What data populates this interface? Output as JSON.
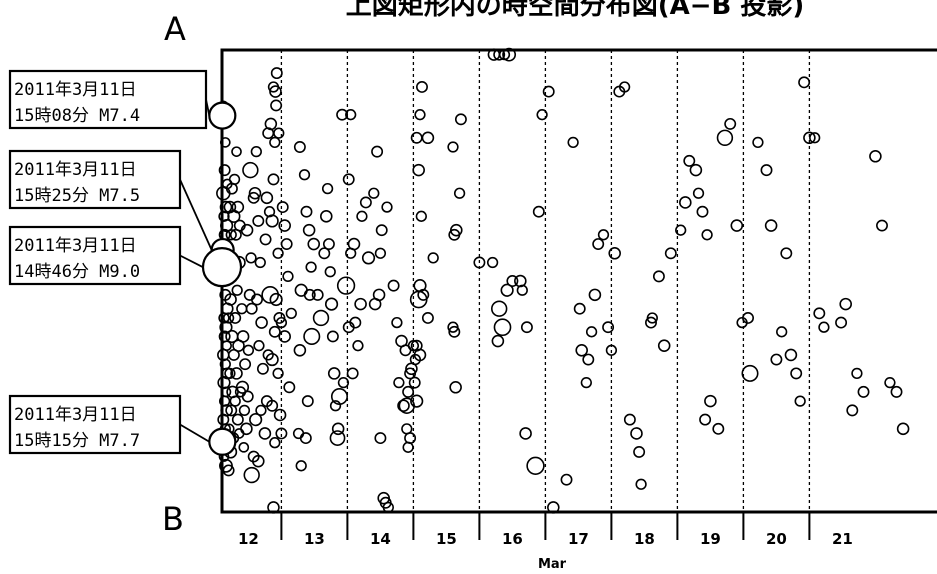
{
  "chart_data": {
    "type": "scatter",
    "title": "上図矩形内の時空間分布図(A−B 投影)",
    "top_label": "A",
    "bottom_label": "B",
    "xlabel": "Mar",
    "ylabel": "",
    "xlim": [
      11.6,
      22.0
    ],
    "ylim": [
      0,
      1
    ],
    "grid": true,
    "x_ticks": [
      {
        "value": 12,
        "label": "12"
      },
      {
        "value": 13,
        "label": "13"
      },
      {
        "value": 14,
        "label": "14"
      },
      {
        "value": 15,
        "label": "15"
      },
      {
        "value": 16,
        "label": "16"
      },
      {
        "value": 17,
        "label": "17"
      },
      {
        "value": 18,
        "label": "18"
      },
      {
        "value": 19,
        "label": "19"
      },
      {
        "value": 20,
        "label": "20"
      },
      {
        "value": 21,
        "label": "21"
      }
    ],
    "callouts": [
      {
        "line1": "2011年3月11日",
        "line2": "15時08分 M7.4",
        "x": 11.605,
        "y": 0.858,
        "mag": 7.4
      },
      {
        "line1": "2011年3月11日",
        "line2": "15時25分 M7.5",
        "x": 11.61,
        "y": 0.567,
        "mag": 7.5
      },
      {
        "line1": "2011年3月11日",
        "line2": "14時46分 M9.0",
        "x": 11.6,
        "y": 0.53,
        "mag": 9.0
      },
      {
        "line1": "2011年3月11日",
        "line2": "15時15分 M7.7",
        "x": 11.605,
        "y": 0.152,
        "mag": 7.7
      }
    ],
    "points": [
      [
        11.62,
        0.88,
        5.0
      ],
      [
        11.65,
        0.8,
        5.1
      ],
      [
        11.64,
        0.74,
        5.3
      ],
      [
        11.68,
        0.71,
        5.1
      ],
      [
        11.62,
        0.69,
        5.7
      ],
      [
        11.66,
        0.66,
        5.4
      ],
      [
        11.63,
        0.64,
        5.2
      ],
      [
        11.67,
        0.62,
        5.5
      ],
      [
        11.64,
        0.6,
        5.3
      ],
      [
        11.66,
        0.58,
        5.2
      ],
      [
        11.62,
        0.5,
        5.1
      ],
      [
        11.65,
        0.47,
        5.3
      ],
      [
        11.68,
        0.44,
        5.4
      ],
      [
        11.63,
        0.42,
        5.2
      ],
      [
        11.66,
        0.4,
        5.5
      ],
      [
        11.64,
        0.38,
        5.3
      ],
      [
        11.67,
        0.36,
        5.1
      ],
      [
        11.62,
        0.34,
        5.4
      ],
      [
        11.65,
        0.32,
        5.2
      ],
      [
        11.68,
        0.3,
        5.3
      ],
      [
        11.63,
        0.28,
        5.5
      ],
      [
        11.66,
        0.26,
        5.1
      ],
      [
        11.64,
        0.24,
        5.2
      ],
      [
        11.67,
        0.22,
        5.4
      ],
      [
        11.62,
        0.2,
        5.3
      ],
      [
        11.65,
        0.18,
        5.2
      ],
      [
        11.68,
        0.14,
        5.5
      ],
      [
        11.63,
        0.12,
        5.1
      ],
      [
        11.66,
        0.1,
        5.6
      ],
      [
        11.7,
        0.09,
        5.3
      ],
      [
        11.72,
        0.66,
        5.4
      ],
      [
        11.75,
        0.7,
        5.3
      ],
      [
        11.78,
        0.64,
        5.5
      ],
      [
        11.74,
        0.6,
        5.2
      ],
      [
        11.71,
        0.56,
        5.1
      ],
      [
        11.76,
        0.52,
        5.3
      ],
      [
        11.73,
        0.46,
        5.4
      ],
      [
        11.7,
        0.42,
        5.2
      ],
      [
        11.75,
        0.38,
        5.5
      ],
      [
        11.78,
        0.34,
        5.3
      ],
      [
        11.72,
        0.3,
        5.2
      ],
      [
        11.76,
        0.26,
        5.4
      ],
      [
        11.74,
        0.22,
        5.3
      ],
      [
        11.71,
        0.18,
        5.1
      ],
      [
        11.77,
        0.16,
        5.3
      ],
      [
        11.73,
        0.13,
        5.5
      ],
      [
        11.8,
        0.24,
        5.2
      ],
      [
        11.82,
        0.3,
        5.4
      ],
      [
        11.84,
        0.2,
        5.3
      ],
      [
        11.86,
        0.17,
        5.1
      ],
      [
        11.88,
        0.26,
        5.2
      ],
      [
        11.85,
        0.36,
        5.4
      ],
      [
        11.8,
        0.42,
        5.3
      ],
      [
        11.83,
        0.48,
        5.2
      ],
      [
        11.86,
        0.54,
        5.5
      ],
      [
        11.81,
        0.6,
        5.3
      ],
      [
        11.84,
        0.66,
        5.4
      ],
      [
        11.79,
        0.72,
        5.2
      ],
      [
        11.82,
        0.78,
        5.1
      ],
      [
        11.87,
        0.62,
        5.3
      ],
      [
        11.9,
        0.44,
        5.2
      ],
      [
        11.92,
        0.38,
        5.4
      ],
      [
        11.95,
        0.32,
        5.3
      ],
      [
        11.91,
        0.27,
        5.5
      ],
      [
        11.94,
        0.22,
        5.2
      ],
      [
        11.97,
        0.18,
        5.4
      ],
      [
        11.93,
        0.14,
        5.1
      ],
      [
        11.99,
        0.25,
        5.3
      ],
      [
        12.0,
        0.35,
        5.2
      ],
      [
        12.02,
        0.47,
        5.3
      ],
      [
        12.04,
        0.55,
        5.2
      ],
      [
        11.98,
        0.61,
        5.4
      ],
      [
        12.05,
        0.44,
        5.3
      ],
      [
        12.08,
        0.68,
        5.3
      ],
      [
        12.03,
        0.74,
        6.0
      ],
      [
        12.12,
        0.78,
        5.2
      ],
      [
        12.1,
        0.69,
        5.4
      ],
      [
        12.15,
        0.63,
        5.3
      ],
      [
        12.18,
        0.54,
        5.2
      ],
      [
        12.13,
        0.46,
        5.3
      ],
      [
        12.2,
        0.41,
        5.4
      ],
      [
        12.16,
        0.36,
        5.2
      ],
      [
        12.22,
        0.31,
        5.3
      ],
      [
        12.19,
        0.22,
        5.2
      ],
      [
        12.25,
        0.17,
        5.4
      ],
      [
        12.11,
        0.2,
        5.5
      ],
      [
        12.08,
        0.12,
        5.3
      ],
      [
        12.05,
        0.08,
        6.0
      ],
      [
        12.15,
        0.11,
        5.4
      ],
      [
        12.28,
        0.24,
        5.3
      ],
      [
        12.3,
        0.34,
        5.2
      ],
      [
        12.33,
        0.47,
        6.2
      ],
      [
        12.26,
        0.59,
        5.3
      ],
      [
        12.28,
        0.68,
        5.4
      ],
      [
        12.32,
        0.65,
        5.2
      ],
      [
        12.36,
        0.63,
        5.5
      ],
      [
        12.38,
        0.72,
        5.3
      ],
      [
        12.4,
        0.8,
        5.2
      ],
      [
        12.34,
        0.84,
        5.4
      ],
      [
        12.42,
        0.88,
        5.3
      ],
      [
        12.38,
        0.92,
        5.2
      ],
      [
        12.43,
        0.95,
        5.3
      ],
      [
        12.41,
        0.91,
        5.4
      ],
      [
        12.3,
        0.82,
        5.3
      ],
      [
        12.46,
        0.82,
        5.2
      ],
      [
        12.45,
        0.3,
        5.2
      ],
      [
        12.48,
        0.21,
        5.4
      ],
      [
        12.5,
        0.17,
        5.3
      ],
      [
        12.36,
        0.23,
        5.3
      ],
      [
        12.4,
        0.15,
        5.2
      ],
      [
        12.52,
        0.66,
        5.3
      ],
      [
        12.55,
        0.62,
        5.4
      ],
      [
        12.45,
        0.56,
        5.2
      ],
      [
        12.42,
        0.46,
        5.5
      ],
      [
        12.58,
        0.58,
        5.3
      ],
      [
        12.6,
        0.51,
        5.2
      ],
      [
        12.55,
        0.38,
        5.4
      ],
      [
        12.62,
        0.27,
        5.3
      ],
      [
        12.65,
        0.43,
        5.2
      ],
      [
        12.47,
        0.42,
        5.3
      ],
      [
        12.38,
        0.01,
        5.4
      ],
      [
        12.5,
        0.41,
        5.2
      ],
      [
        12.4,
        0.39,
        5.3
      ],
      [
        12.36,
        0.33,
        5.5
      ],
      [
        12.78,
        0.79,
        5.3
      ],
      [
        12.85,
        0.73,
        5.2
      ],
      [
        12.92,
        0.61,
        5.4
      ],
      [
        12.88,
        0.65,
        5.3
      ],
      [
        12.95,
        0.53,
        5.2
      ],
      [
        12.8,
        0.48,
        5.5
      ],
      [
        12.96,
        0.38,
        6.1
      ],
      [
        12.78,
        0.35,
        5.4
      ],
      [
        12.9,
        0.24,
        5.3
      ],
      [
        12.76,
        0.17,
        5.2
      ],
      [
        12.87,
        0.16,
        5.3
      ],
      [
        12.99,
        0.58,
        5.4
      ],
      [
        12.93,
        0.47,
        5.3
      ],
      [
        12.8,
        0.1,
        5.2
      ],
      [
        13.05,
        0.47,
        5.3
      ],
      [
        13.1,
        0.42,
        6.0
      ],
      [
        13.15,
        0.56,
        5.3
      ],
      [
        13.18,
        0.64,
        5.4
      ],
      [
        13.2,
        0.7,
        5.2
      ],
      [
        13.22,
        0.58,
        5.3
      ],
      [
        13.24,
        0.52,
        5.2
      ],
      [
        13.26,
        0.45,
        5.5
      ],
      [
        13.28,
        0.38,
        5.3
      ],
      [
        13.3,
        0.3,
        5.4
      ],
      [
        13.32,
        0.23,
        5.2
      ],
      [
        13.35,
        0.16,
        5.9
      ],
      [
        13.38,
        0.25,
        6.1
      ],
      [
        13.42,
        0.86,
        5.3
      ],
      [
        13.55,
        0.86,
        5.2
      ],
      [
        13.52,
        0.72,
        5.3
      ],
      [
        13.6,
        0.58,
        5.4
      ],
      [
        13.55,
        0.56,
        5.2
      ],
      [
        13.48,
        0.49,
        6.3
      ],
      [
        13.62,
        0.41,
        5.3
      ],
      [
        13.66,
        0.36,
        5.2
      ],
      [
        13.7,
        0.45,
        5.4
      ],
      [
        13.58,
        0.3,
        5.3
      ],
      [
        13.44,
        0.28,
        5.2
      ],
      [
        13.36,
        0.18,
        5.4
      ],
      [
        13.52,
        0.4,
        5.3
      ],
      [
        13.72,
        0.64,
        5.2
      ],
      [
        13.78,
        0.67,
        5.3
      ],
      [
        13.82,
        0.55,
        5.5
      ],
      [
        13.9,
        0.69,
        5.2
      ],
      [
        13.95,
        0.78,
        5.3
      ],
      [
        13.98,
        0.47,
        5.4
      ],
      [
        14.0,
        0.56,
        5.2
      ],
      [
        14.02,
        0.61,
        5.3
      ],
      [
        14.05,
        0.03,
        5.4
      ],
      [
        14.08,
        0.02,
        5.3
      ],
      [
        14.12,
        0.01,
        5.2
      ],
      [
        14.0,
        0.16,
        5.3
      ],
      [
        13.92,
        0.45,
        5.4
      ],
      [
        14.1,
        0.66,
        5.2
      ],
      [
        14.2,
        0.49,
        5.3
      ],
      [
        14.25,
        0.41,
        5.2
      ],
      [
        14.32,
        0.37,
        5.4
      ],
      [
        14.38,
        0.35,
        5.3
      ],
      [
        14.28,
        0.28,
        5.2
      ],
      [
        14.35,
        0.23,
        5.4
      ],
      [
        14.4,
        0.18,
        5.2
      ],
      [
        14.42,
        0.26,
        5.3
      ],
      [
        14.47,
        0.31,
        5.4
      ],
      [
        14.53,
        0.33,
        5.2
      ],
      [
        14.55,
        0.36,
        5.3
      ],
      [
        14.58,
        0.46,
        6.2
      ],
      [
        14.6,
        0.49,
        5.5
      ],
      [
        14.65,
        0.47,
        5.3
      ],
      [
        14.62,
        0.64,
        5.2
      ],
      [
        14.58,
        0.74,
        5.4
      ],
      [
        14.55,
        0.81,
        5.3
      ],
      [
        14.6,
        0.86,
        5.2
      ],
      [
        14.63,
        0.92,
        5.3
      ],
      [
        14.72,
        0.81,
        5.4
      ],
      [
        14.8,
        0.55,
        5.2
      ],
      [
        14.72,
        0.42,
        5.3
      ],
      [
        14.55,
        0.24,
        5.5
      ],
      [
        14.4,
        0.23,
        6.0
      ],
      [
        14.45,
        0.3,
        5.3
      ],
      [
        14.5,
        0.36,
        5.2
      ],
      [
        14.52,
        0.28,
        5.3
      ],
      [
        14.6,
        0.34,
        5.4
      ],
      [
        14.45,
        0.16,
        5.3
      ],
      [
        14.42,
        0.14,
        5.2
      ],
      [
        15.1,
        0.79,
        5.2
      ],
      [
        15.12,
        0.6,
        5.3
      ],
      [
        15.15,
        0.61,
        5.4
      ],
      [
        15.2,
        0.69,
        5.2
      ],
      [
        15.22,
        0.85,
        5.3
      ],
      [
        15.1,
        0.4,
        5.2
      ],
      [
        15.12,
        0.39,
        5.3
      ],
      [
        15.14,
        0.27,
        5.4
      ],
      [
        15.5,
        0.54,
        5.3
      ],
      [
        15.7,
        0.54,
        5.2
      ],
      [
        15.72,
        0.99,
        5.4
      ],
      [
        15.8,
        0.99,
        5.3
      ],
      [
        15.88,
        0.99,
        5.2
      ],
      [
        15.95,
        0.99,
        5.6
      ],
      [
        15.8,
        0.44,
        6.0
      ],
      [
        15.85,
        0.4,
        6.2
      ],
      [
        15.78,
        0.37,
        5.4
      ],
      [
        15.92,
        0.48,
        5.5
      ],
      [
        16.0,
        0.5,
        5.3
      ],
      [
        16.12,
        0.5,
        5.4
      ],
      [
        16.15,
        0.48,
        5.2
      ],
      [
        16.22,
        0.4,
        5.3
      ],
      [
        16.2,
        0.17,
        5.4
      ],
      [
        16.35,
        0.1,
        6.3
      ],
      [
        16.4,
        0.65,
        5.3
      ],
      [
        16.45,
        0.86,
        5.2
      ],
      [
        16.55,
        0.91,
        5.3
      ],
      [
        16.62,
        0.01,
        5.4
      ],
      [
        16.82,
        0.07,
        5.3
      ],
      [
        16.92,
        0.8,
        5.2
      ],
      [
        17.02,
        0.44,
        5.3
      ],
      [
        17.05,
        0.35,
        5.4
      ],
      [
        17.12,
        0.28,
        5.2
      ],
      [
        17.15,
        0.33,
        5.3
      ],
      [
        17.2,
        0.39,
        5.2
      ],
      [
        17.25,
        0.47,
        5.4
      ],
      [
        17.3,
        0.58,
        5.3
      ],
      [
        17.38,
        0.6,
        5.2
      ],
      [
        17.45,
        0.4,
        5.3
      ],
      [
        17.5,
        0.35,
        5.2
      ],
      [
        17.55,
        0.56,
        5.4
      ],
      [
        17.62,
        0.91,
        5.3
      ],
      [
        17.7,
        0.92,
        5.2
      ],
      [
        17.78,
        0.2,
        5.3
      ],
      [
        17.88,
        0.17,
        5.4
      ],
      [
        17.92,
        0.13,
        5.3
      ],
      [
        17.95,
        0.06,
        5.2
      ],
      [
        18.1,
        0.41,
        5.3
      ],
      [
        18.12,
        0.42,
        5.2
      ],
      [
        18.22,
        0.51,
        5.3
      ],
      [
        18.3,
        0.36,
        5.4
      ],
      [
        18.4,
        0.56,
        5.3
      ],
      [
        18.55,
        0.61,
        5.2
      ],
      [
        18.62,
        0.67,
        5.4
      ],
      [
        18.68,
        0.76,
        5.3
      ],
      [
        18.78,
        0.74,
        5.4
      ],
      [
        18.82,
        0.69,
        5.2
      ],
      [
        18.88,
        0.65,
        5.3
      ],
      [
        18.95,
        0.6,
        5.2
      ],
      [
        18.92,
        0.2,
        5.3
      ],
      [
        19.0,
        0.24,
        5.4
      ],
      [
        19.12,
        0.18,
        5.3
      ],
      [
        19.22,
        0.81,
        6.0
      ],
      [
        19.3,
        0.84,
        5.3
      ],
      [
        19.4,
        0.62,
        5.4
      ],
      [
        19.48,
        0.41,
        5.2
      ],
      [
        19.57,
        0.42,
        5.3
      ],
      [
        19.6,
        0.3,
        6.1
      ],
      [
        19.72,
        0.8,
        5.2
      ],
      [
        19.85,
        0.74,
        5.3
      ],
      [
        19.92,
        0.62,
        5.4
      ],
      [
        20.0,
        0.33,
        5.3
      ],
      [
        20.08,
        0.39,
        5.2
      ],
      [
        20.15,
        0.56,
        5.3
      ],
      [
        20.22,
        0.34,
        5.4
      ],
      [
        20.3,
        0.3,
        5.3
      ],
      [
        20.36,
        0.24,
        5.2
      ],
      [
        20.42,
        0.93,
        5.3
      ],
      [
        20.5,
        0.81,
        5.4
      ],
      [
        20.58,
        0.81,
        5.2
      ],
      [
        20.65,
        0.43,
        5.3
      ],
      [
        20.72,
        0.4,
        5.2
      ],
      [
        20.98,
        0.41,
        5.3
      ],
      [
        21.05,
        0.45,
        5.4
      ],
      [
        21.15,
        0.22,
        5.3
      ],
      [
        21.22,
        0.3,
        5.2
      ],
      [
        21.32,
        0.26,
        5.3
      ],
      [
        21.5,
        0.77,
        5.4
      ],
      [
        21.6,
        0.62,
        5.3
      ],
      [
        21.72,
        0.28,
        5.2
      ],
      [
        21.82,
        0.26,
        5.3
      ],
      [
        21.92,
        0.18,
        5.4
      ]
    ]
  }
}
